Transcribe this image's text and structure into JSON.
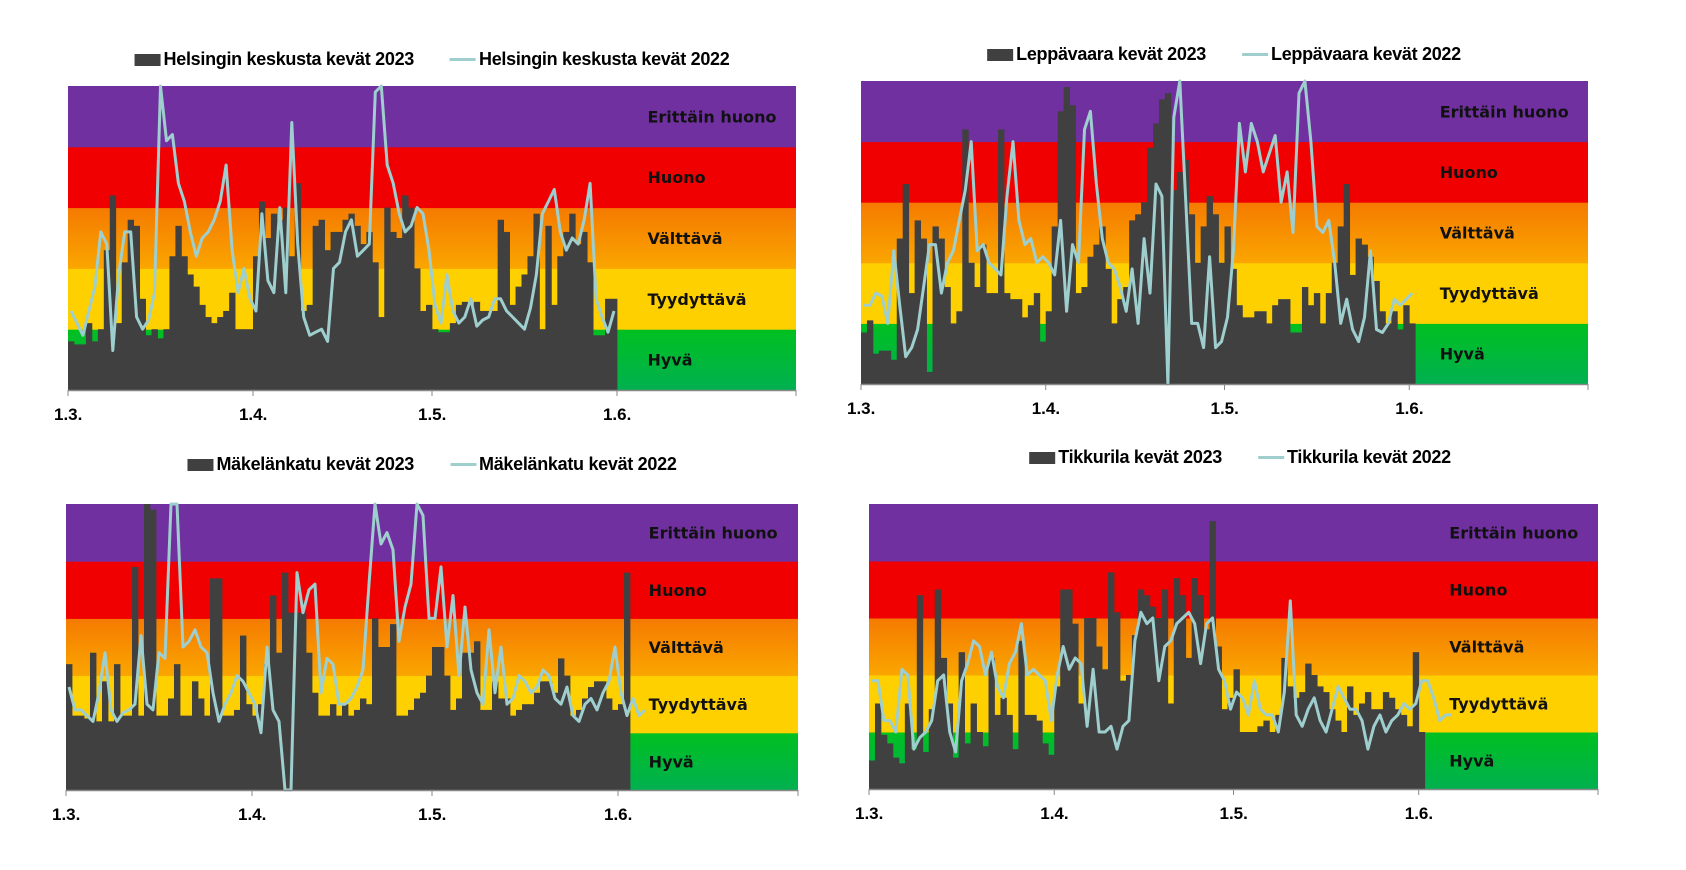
{
  "bands": [
    {
      "label": "Hyvä",
      "color_top": "#00C020",
      "color_bottom": "#00B050"
    },
    {
      "label": "Tyydyttävä",
      "color_top": "#FFD000",
      "color_bottom": "#FFD000"
    },
    {
      "label": "Välttävä",
      "color_top": "#F57A00",
      "color_bottom": "#FAA600"
    },
    {
      "label": "Huono",
      "color_top": "#F00000",
      "color_bottom": "#F00000"
    },
    {
      "label": "Erittäin huono",
      "color_top": "#7030A0",
      "color_bottom": "#7030A0"
    }
  ],
  "colors": {
    "bar": "#404040",
    "line": "#9ECECE",
    "axis": "#888888"
  },
  "chart_data": [
    {
      "type": "bar",
      "title": "",
      "xlabel": "",
      "ylabel": "",
      "x_ticks": [
        "1.3.",
        "1.4.",
        "1.5.",
        "1.6."
      ],
      "x_range_days": [
        0,
        122
      ],
      "tick_days": [
        0,
        31,
        61,
        92
      ],
      "ylim": [
        0,
        5
      ],
      "grid": false,
      "legend_position": "top",
      "series": [
        {
          "name": "Helsingin keskusta kevät 2023",
          "kind": "bar",
          "values": [
            0.8,
            0.75,
            0.75,
            1.1,
            0.8,
            1.0,
            2.3,
            3.2,
            1.1,
            2.1,
            2.8,
            2.7,
            1.5,
            0.9,
            1.0,
            0.85,
            1.0,
            2.2,
            2.7,
            2.2,
            1.9,
            1.7,
            1.4,
            1.2,
            1.1,
            1.2,
            1.3,
            1.6,
            1.0,
            1.0,
            1.0,
            2.2,
            3.1,
            2.5,
            2.9,
            2.8,
            3.0,
            2.2,
            3.4,
            1.3,
            1.4,
            2.7,
            2.8,
            2.3,
            2.6,
            2.6,
            2.8,
            2.9,
            2.7,
            2.4,
            2.6,
            2.1,
            1.2,
            3.0,
            2.6,
            2.5,
            3.2,
            3.0,
            2.0,
            1.3,
            1.4,
            1.0,
            0.95,
            0.95,
            1.1,
            1.4,
            1.45,
            1.4,
            1.45,
            1.3,
            1.3,
            1.3,
            2.8,
            2.6,
            1.4,
            1.7,
            1.9,
            2.2,
            2.9,
            1.0,
            2.7,
            1.4,
            2.2,
            2.6,
            2.9,
            2.4,
            2.6,
            2.1,
            0.9,
            0.9,
            1.5,
            1.5
          ]
        },
        {
          "name": "Helsingin keskusta kevät 2022",
          "kind": "line",
          "values": [
            1.3,
            1.1,
            0.9,
            1.3,
            1.7,
            2.6,
            2.4,
            0.65,
            1.9,
            2.6,
            2.6,
            1.2,
            1.0,
            1.15,
            1.6,
            5.0,
            4.1,
            4.2,
            3.4,
            3.1,
            2.6,
            2.2,
            2.5,
            2.6,
            2.8,
            3.1,
            3.7,
            2.3,
            1.6,
            2.0,
            1.5,
            1.3,
            2.9,
            1.8,
            1.6,
            3.0,
            1.6,
            4.4,
            2.4,
            1.2,
            0.9,
            0.95,
            1.0,
            0.8,
            2.0,
            2.1,
            2.6,
            2.8,
            2.2,
            2.3,
            2.4,
            4.9,
            5.0,
            3.7,
            3.4,
            2.9,
            2.6,
            2.7,
            3.0,
            2.9,
            2.3,
            1.4,
            1.1,
            1.9,
            1.3,
            1.1,
            1.2,
            1.5,
            1.05,
            1.15,
            1.2,
            1.5,
            1.5,
            1.3,
            1.2,
            1.1,
            1.0,
            1.35,
            1.9,
            2.9,
            3.1,
            3.3,
            2.6,
            2.3,
            2.5,
            2.4,
            2.8,
            3.4,
            1.5,
            1.2,
            0.95,
            1.3
          ]
        }
      ]
    },
    {
      "type": "bar",
      "title": "",
      "xlabel": "",
      "ylabel": "",
      "x_ticks": [
        "1.3.",
        "1.4.",
        "1.5.",
        "1.6."
      ],
      "x_range_days": [
        0,
        122
      ],
      "tick_days": [
        0,
        31,
        61,
        92
      ],
      "ylim": [
        0,
        5
      ],
      "grid": false,
      "legend_position": "top",
      "series": [
        {
          "name": "Leppävaara kevät 2023",
          "kind": "bar",
          "values": [
            0.85,
            1.05,
            0.5,
            0.55,
            0.55,
            0.4,
            2.4,
            3.3,
            1.5,
            2.7,
            2.4,
            0.2,
            2.6,
            2.4,
            1.6,
            1.0,
            1.2,
            4.2,
            2.0,
            1.6,
            2.3,
            1.5,
            1.5,
            4.2,
            1.5,
            1.4,
            1.4,
            1.1,
            1.3,
            1.5,
            0.7,
            1.2,
            2.6,
            4.5,
            4.9,
            4.6,
            1.5,
            1.6,
            2.1,
            2.3,
            2.6,
            1.9,
            1.0,
            1.4,
            1.6,
            2.7,
            2.8,
            3.0,
            3.9,
            4.3,
            4.7,
            4.8,
            3.2,
            3.5,
            3.7,
            2.8,
            2.0,
            2.6,
            3.1,
            2.8,
            2.0,
            2.6,
            1.9,
            1.3,
            1.1,
            1.1,
            1.2,
            1.2,
            1.0,
            1.3,
            1.4,
            1.4,
            0.85,
            0.85,
            1.6,
            1.3,
            1.5,
            1.0,
            1.5,
            2.0,
            2.6,
            3.3,
            1.8,
            2.4,
            2.3,
            2.1,
            1.7,
            1.2,
            1.0,
            1.2,
            0.9,
            1.3,
            1.0
          ]
        },
        {
          "name": "Leppävaara kevät 2022",
          "kind": "line",
          "values": [
            1.3,
            1.3,
            1.5,
            1.45,
            1.0,
            2.2,
            1.3,
            0.45,
            0.6,
            0.9,
            1.6,
            2.3,
            2.3,
            1.5,
            2.0,
            2.2,
            2.7,
            3.2,
            4.0,
            2.2,
            2.3,
            2.0,
            1.9,
            1.8,
            3.1,
            4.0,
            2.7,
            2.3,
            2.4,
            2.0,
            2.1,
            2.0,
            1.8,
            2.7,
            1.2,
            2.3,
            2.0,
            4.2,
            4.5,
            3.3,
            2.4,
            2.0,
            1.9,
            1.6,
            1.2,
            1.9,
            1.0,
            2.4,
            1.5,
            3.3,
            3.1,
            0.0,
            4.4,
            5.0,
            3.0,
            1.0,
            1.0,
            0.6,
            2.1,
            0.6,
            0.7,
            1.1,
            2.2,
            4.3,
            3.5,
            4.3,
            4.0,
            3.5,
            3.8,
            4.1,
            3.0,
            3.5,
            2.5,
            4.8,
            5.0,
            4.0,
            2.6,
            2.5,
            2.7,
            2.0,
            1.0,
            1.4,
            0.9,
            0.7,
            1.1,
            2.2,
            0.9,
            0.85,
            1.0,
            1.4,
            1.3,
            1.4,
            1.5
          ]
        }
      ]
    },
    {
      "type": "bar",
      "title": "",
      "xlabel": "",
      "ylabel": "",
      "x_ticks": [
        "1.3.",
        "1.4.",
        "1.5.",
        "1.6."
      ],
      "x_range_days": [
        0,
        122
      ],
      "tick_days": [
        0,
        31,
        61,
        92
      ],
      "ylim": [
        0,
        5
      ],
      "grid": false,
      "legend_position": "top",
      "series": [
        {
          "name": "Mäkelänkatu kevät 2023",
          "kind": "bar",
          "values": [
            2.2,
            1.3,
            1.3,
            1.25,
            2.4,
            1.2,
            1.9,
            1.2,
            2.2,
            1.3,
            1.3,
            3.9,
            1.3,
            5.0,
            4.9,
            1.3,
            1.3,
            1.6,
            2.2,
            1.3,
            1.3,
            1.9,
            1.6,
            1.3,
            3.7,
            3.7,
            1.3,
            1.3,
            1.4,
            2.7,
            1.5,
            1.3,
            1.5,
            2.2,
            3.4,
            2.4,
            3.8,
            3.1,
            3.1,
            3.1,
            2.4,
            1.7,
            1.3,
            1.3,
            1.5,
            1.3,
            1.5,
            1.3,
            1.4,
            1.6,
            1.5,
            3.0,
            2.5,
            2.5,
            2.9,
            1.3,
            1.3,
            1.4,
            1.6,
            1.7,
            2.0,
            2.5,
            2.5,
            2.0,
            1.4,
            1.6,
            2.4,
            2.4,
            2.6,
            1.4,
            1.4,
            1.9,
            1.6,
            1.6,
            1.3,
            1.4,
            1.5,
            1.5,
            1.7,
            1.9,
            1.9,
            1.7,
            2.3,
            2.0,
            1.3,
            1.4,
            1.6,
            1.8,
            1.9,
            1.9,
            1.6,
            1.4,
            1.5,
            3.8
          ]
        },
        {
          "name": "Mäkelänkatu kevät 2022",
          "kind": "line",
          "values": [
            1.8,
            1.4,
            1.4,
            1.3,
            1.2,
            1.7,
            2.4,
            1.4,
            1.2,
            1.35,
            1.4,
            1.5,
            2.7,
            1.5,
            1.4,
            2.4,
            2.3,
            5.0,
            5.0,
            2.5,
            2.6,
            2.8,
            2.5,
            2.4,
            1.7,
            1.2,
            1.5,
            1.7,
            2.0,
            1.9,
            1.7,
            1.5,
            1.0,
            2.5,
            1.4,
            1.2,
            0.0,
            0.0,
            3.8,
            3.1,
            3.5,
            3.6,
            1.7,
            2.3,
            2.2,
            1.5,
            1.5,
            1.6,
            1.8,
            2.1,
            3.6,
            5.0,
            4.3,
            4.5,
            4.2,
            2.6,
            3.2,
            3.6,
            5.0,
            4.8,
            3.0,
            3.0,
            3.9,
            2.5,
            3.4,
            2.0,
            3.2,
            2.1,
            1.7,
            1.5,
            2.8,
            1.7,
            2.5,
            1.5,
            1.6,
            2.0,
            1.9,
            1.7,
            1.8,
            2.1,
            2.0,
            1.6,
            1.5,
            1.8,
            1.3,
            1.2,
            1.5,
            1.6,
            1.4,
            1.7,
            1.9,
            2.5,
            1.7,
            1.3,
            1.6,
            1.3,
            1.4
          ]
        }
      ]
    },
    {
      "type": "bar",
      "title": "",
      "xlabel": "",
      "ylabel": "",
      "x_ticks": [
        "1.3.",
        "1.4.",
        "1.5.",
        "1.6."
      ],
      "x_range_days": [
        0,
        122
      ],
      "tick_days": [
        0,
        31,
        61,
        92
      ],
      "ylim": [
        0,
        5
      ],
      "grid": false,
      "legend_position": "top",
      "series": [
        {
          "name": "Tikkurila kevät 2023",
          "kind": "bar",
          "values": [
            0.5,
            1.5,
            0.95,
            0.8,
            0.55,
            0.45,
            1.5,
            0.7,
            3.4,
            0.65,
            1.4,
            3.5,
            2.3,
            1.5,
            0.55,
            2.4,
            0.8,
            1.5,
            1.0,
            0.75,
            2.3,
            1.3,
            1.6,
            1.3,
            0.7,
            2.6,
            1.3,
            1.3,
            1.2,
            0.8,
            0.6,
            1.8,
            3.5,
            3.5,
            2.9,
            1.5,
            3.0,
            3.0,
            2.5,
            2.1,
            3.8,
            3.1,
            1.9,
            2.0,
            2.7,
            3.5,
            3.4,
            3.2,
            3.0,
            3.5,
            1.5,
            3.7,
            3.4,
            2.3,
            3.7,
            3.4,
            2.8,
            4.7,
            2.5,
            1.4,
            1.6,
            2.1,
            1.0,
            1.0,
            1.0,
            1.1,
            1.2,
            1.0,
            1.3,
            2.3,
            1.8,
            1.6,
            1.7,
            2.2,
            2.0,
            1.8,
            1.7,
            1.4,
            1.2,
            1.0,
            1.8,
            1.3,
            1.5,
            1.7,
            1.4,
            1.4,
            1.7,
            1.6,
            1.4,
            1.3,
            1.1,
            2.4,
            1.0
          ]
        },
        {
          "name": "Tikkurila kevät 2022",
          "kind": "line",
          "values": [
            1.9,
            1.9,
            1.2,
            1.2,
            1.0,
            2.1,
            2.0,
            0.7,
            0.9,
            1.0,
            1.2,
            1.9,
            2.0,
            1.0,
            0.65,
            1.9,
            2.2,
            2.6,
            2.5,
            2.0,
            2.4,
            1.8,
            1.6,
            2.2,
            2.4,
            2.9,
            2.0,
            2.1,
            2.0,
            1.9,
            1.2,
            2.0,
            2.5,
            2.1,
            2.3,
            2.2,
            1.1,
            2.1,
            1.0,
            1.0,
            1.1,
            0.7,
            1.1,
            1.2,
            2.6,
            3.1,
            2.9,
            3.0,
            1.9,
            2.5,
            2.6,
            2.9,
            3.0,
            3.1,
            2.9,
            2.2,
            2.9,
            3.0,
            2.1,
            1.9,
            1.4,
            1.7,
            1.6,
            1.3,
            1.9,
            1.4,
            1.3,
            1.3,
            1.0,
            1.7,
            3.3,
            1.3,
            1.1,
            1.4,
            1.6,
            1.2,
            1.0,
            1.4,
            1.8,
            1.6,
            1.4,
            1.4,
            1.2,
            0.7,
            1.1,
            1.3,
            1.0,
            1.2,
            1.3,
            1.5,
            1.4,
            1.5,
            1.9,
            1.9,
            1.6,
            1.2,
            1.3,
            1.3
          ]
        }
      ]
    }
  ]
}
